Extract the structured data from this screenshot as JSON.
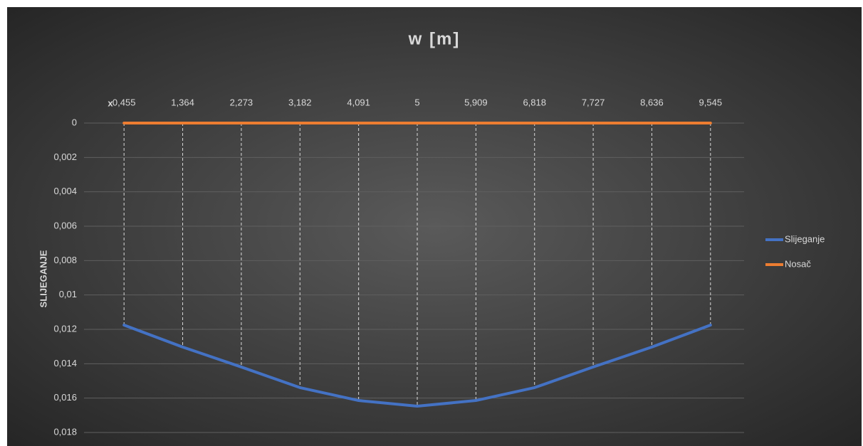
{
  "chart_data": {
    "type": "line",
    "title": "w [m]",
    "x_label": "x",
    "y_label": "SLIJEGANJE",
    "categories": [
      "0,455",
      "1,364",
      "2,273",
      "3,182",
      "4,091",
      "5",
      "5,909",
      "6,818",
      "7,727",
      "8,636",
      "9,545"
    ],
    "series": [
      {
        "name": "Slijeganje",
        "color": "#4472c4",
        "values": [
          0.01175,
          0.01303,
          0.01419,
          0.01539,
          0.01614,
          0.01647,
          0.01614,
          0.01539,
          0.01419,
          0.01303,
          0.01175
        ]
      },
      {
        "name": "Nosač",
        "color": "#ed7d31",
        "values": [
          0,
          0,
          0,
          0,
          0,
          0,
          0,
          0,
          0,
          0,
          0
        ]
      }
    ],
    "ylim": [
      0,
      0.018
    ],
    "y_inverted": true,
    "yticks": [
      0,
      {
        "value": 0.002,
        "label": "0,002"
      },
      {
        "value": 0.004,
        "label": "0,004"
      },
      {
        "value": 0.006,
        "label": "0,006"
      },
      {
        "value": 0.008,
        "label": "0,008"
      },
      {
        "value": 0.01,
        "label": "0,01"
      },
      {
        "value": 0.012,
        "label": "0,012"
      },
      {
        "value": 0.014,
        "label": "0,014"
      },
      {
        "value": 0.016,
        "label": "0,016"
      },
      {
        "value": 0.018,
        "label": "0,018"
      }
    ],
    "grid": true,
    "drop_lines": true,
    "legend": "right"
  }
}
